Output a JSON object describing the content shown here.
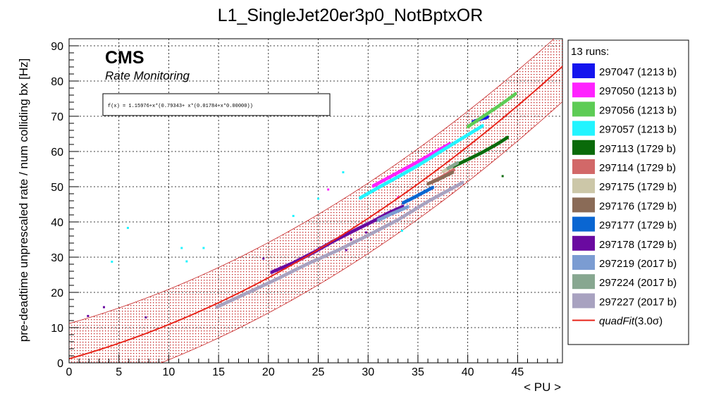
{
  "chart_data": {
    "type": "scatter",
    "title": "L1_SingleJet20er3p0_NotBptxOR",
    "xlabel": "< PU >",
    "ylabel": "pre-deadtime unprescaled rate / num colliding bx [Hz]",
    "xlim": [
      0,
      49.5
    ],
    "ylim": [
      0,
      92
    ],
    "x_ticks": [
      "0",
      "5",
      "10",
      "15",
      "20",
      "25",
      "30",
      "35",
      "40",
      "45"
    ],
    "y_ticks": [
      "0",
      "10",
      "20",
      "30",
      "40",
      "50",
      "60",
      "70",
      "80",
      "90"
    ],
    "grid": true,
    "annotations": {
      "experiment": "CMS",
      "subtitle": "Rate Monitoring",
      "fit_formula": "f(x) = 1.15976+x*(0.79343+ x*(0.01784+x*0.00000))"
    },
    "legend": {
      "placement": "right",
      "header": "13 runs:",
      "fit_label_name": "quadFit",
      "fit_label_param": "(3.0σ)"
    },
    "fit": {
      "name": "quadFit",
      "c0": 1.15976,
      "c1": 0.79343,
      "c2": 0.01784,
      "band_sigma": 3.0,
      "band_half_width": 10,
      "color": "#e8251b"
    },
    "series": [
      {
        "name": "297047 (1213 b)",
        "color": "#1414ee",
        "x_range": [
          40.5,
          42.0
        ],
        "points": [
          [
            40.5,
            68.4
          ],
          [
            40.8,
            68.7
          ],
          [
            41.1,
            69.0
          ],
          [
            41.4,
            69.3
          ],
          [
            41.7,
            69.5
          ],
          [
            42.0,
            69.8
          ]
        ],
        "outliers": []
      },
      {
        "name": "297050 (1213 b)",
        "color": "#ff22ff",
        "x_range": [
          30.5,
          38.2
        ],
        "points": [
          [
            30.5,
            50.2
          ],
          [
            32.0,
            52.5
          ],
          [
            33.5,
            54.8
          ],
          [
            35.0,
            57.1
          ],
          [
            36.5,
            59.5
          ],
          [
            38.2,
            62.2
          ]
        ],
        "outliers": [
          [
            26.0,
            49.2
          ],
          [
            31.0,
            50.0
          ],
          [
            33.0,
            47.0
          ]
        ]
      },
      {
        "name": "297056 (1213 b)",
        "color": "#5dcc55",
        "x_range": [
          40.0,
          44.8
        ],
        "points": [
          [
            40.0,
            67.0
          ],
          [
            41.0,
            68.9
          ],
          [
            42.0,
            70.8
          ],
          [
            43.0,
            72.7
          ],
          [
            44.0,
            74.7
          ],
          [
            44.8,
            76.4
          ]
        ],
        "outliers": []
      },
      {
        "name": "297057 (1213 b)",
        "color": "#22f4ff",
        "x_range": [
          29.2,
          41.5
        ],
        "points": [
          [
            29.2,
            46.8
          ],
          [
            31.0,
            49.7
          ],
          [
            33.0,
            52.8
          ],
          [
            35.0,
            56.0
          ],
          [
            37.0,
            59.5
          ],
          [
            39.0,
            63.0
          ],
          [
            41.5,
            67.3
          ]
        ],
        "outliers": [
          [
            4.3,
            28.7
          ],
          [
            5.9,
            38.3
          ],
          [
            11.3,
            32.6
          ],
          [
            11.8,
            28.8
          ],
          [
            13.5,
            32.6
          ],
          [
            22.5,
            41.7
          ],
          [
            25.0,
            46.6
          ],
          [
            27.5,
            54.1
          ],
          [
            33.4,
            37.5
          ],
          [
            31.6,
            41.0
          ]
        ]
      },
      {
        "name": "297113 (1729 b)",
        "color": "#0a6a0a",
        "x_range": [
          38.5,
          44.0
        ],
        "points": [
          [
            38.5,
            55.7
          ],
          [
            40.0,
            57.7
          ],
          [
            41.5,
            59.8
          ],
          [
            43.0,
            62.2
          ],
          [
            44.0,
            64.0
          ]
        ],
        "outliers": [
          [
            43.5,
            53.0
          ]
        ]
      },
      {
        "name": "297114 (1729 b)",
        "color": "#d26868",
        "x_range": [
          36.5,
          38.6
        ],
        "points": [
          [
            36.5,
            51.5
          ],
          [
            37.2,
            52.5
          ],
          [
            37.9,
            53.6
          ],
          [
            38.6,
            54.8
          ]
        ],
        "outliers": []
      },
      {
        "name": "297175 (1729 b)",
        "color": "#ccc7a8",
        "x_range": [
          37.5,
          38.4
        ],
        "points": [
          [
            37.5,
            54.3
          ],
          [
            38.0,
            55.0
          ],
          [
            38.4,
            55.6
          ]
        ],
        "outliers": []
      },
      {
        "name": "297176 (1729 b)",
        "color": "#8a6b57",
        "x_range": [
          36.0,
          38.5
        ],
        "points": [
          [
            36.0,
            50.8
          ],
          [
            37.0,
            52.0
          ],
          [
            38.0,
            53.4
          ],
          [
            38.5,
            54.1
          ]
        ],
        "outliers": []
      },
      {
        "name": "297177 (1729 b)",
        "color": "#0a66d2",
        "x_range": [
          33.5,
          36.5
        ],
        "points": [
          [
            33.5,
            45.4
          ],
          [
            34.5,
            46.8
          ],
          [
            35.5,
            48.3
          ],
          [
            36.5,
            49.8
          ]
        ],
        "outliers": []
      },
      {
        "name": "297178 (1729 b)",
        "color": "#6a0aa0",
        "x_range": [
          20.3,
          33.5
        ],
        "points": [
          [
            20.3,
            25.7
          ],
          [
            22.5,
            28.4
          ],
          [
            24.5,
            31.3
          ],
          [
            26.5,
            34.5
          ],
          [
            28.5,
            37.4
          ],
          [
            30.5,
            40.2
          ],
          [
            32.0,
            42.5
          ],
          [
            33.5,
            44.4
          ]
        ],
        "outliers": [
          [
            1.9,
            13.3
          ],
          [
            3.5,
            15.8
          ],
          [
            7.7,
            12.9
          ],
          [
            19.5,
            29.6
          ],
          [
            27.8,
            32.0
          ],
          [
            28.3,
            35.0
          ],
          [
            29.8,
            37.0
          ],
          [
            34.8,
            44.0
          ]
        ]
      },
      {
        "name": "297219 (2017 b)",
        "color": "#7b9cd2",
        "x_range": [
          31.0,
          34.0
        ],
        "points": [
          [
            31.0,
            40.5
          ],
          [
            32.5,
            42.5
          ],
          [
            34.0,
            44.3
          ]
        ],
        "outliers": []
      },
      {
        "name": "297224 (2017 b)",
        "color": "#87a790",
        "x_range": [
          38.0,
          39.0
        ],
        "points": [
          [
            38.0,
            55.2
          ],
          [
            38.5,
            56.0
          ],
          [
            39.0,
            56.8
          ]
        ],
        "outliers": []
      },
      {
        "name": "297227 (2017 b)",
        "color": "#a8a2c0",
        "x_range": [
          14.8,
          39.5
        ],
        "points": [
          [
            14.8,
            15.8
          ],
          [
            18.0,
            20.0
          ],
          [
            21.0,
            24.0
          ],
          [
            24.0,
            28.2
          ],
          [
            27.0,
            32.0
          ],
          [
            30.0,
            36.2
          ],
          [
            33.0,
            40.6
          ],
          [
            36.0,
            45.8
          ],
          [
            39.5,
            51.2
          ]
        ],
        "outliers": []
      }
    ]
  }
}
